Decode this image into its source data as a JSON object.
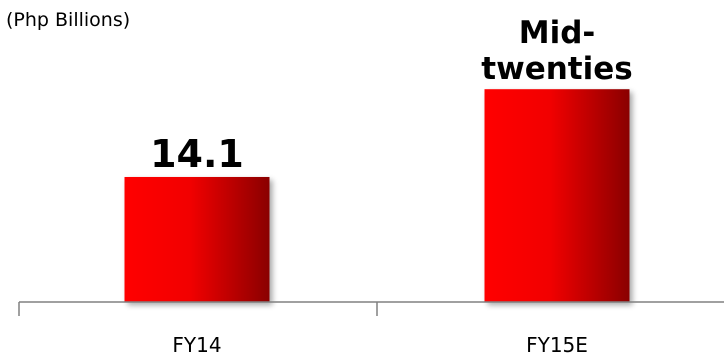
{
  "chart_data": {
    "type": "bar",
    "unit_label": "(Php Billions)",
    "categories": [
      "FY14",
      "FY15E"
    ],
    "values": [
      14.1,
      24
    ],
    "data_labels": [
      [
        "14.1"
      ],
      [
        "Mid-",
        "twenties"
      ]
    ],
    "ylim": [
      0,
      30
    ],
    "grid": false,
    "legend": "none",
    "colors": {
      "bar_light": "#ff0000",
      "bar_dark": "#8a0000",
      "axis": "#808080"
    }
  }
}
